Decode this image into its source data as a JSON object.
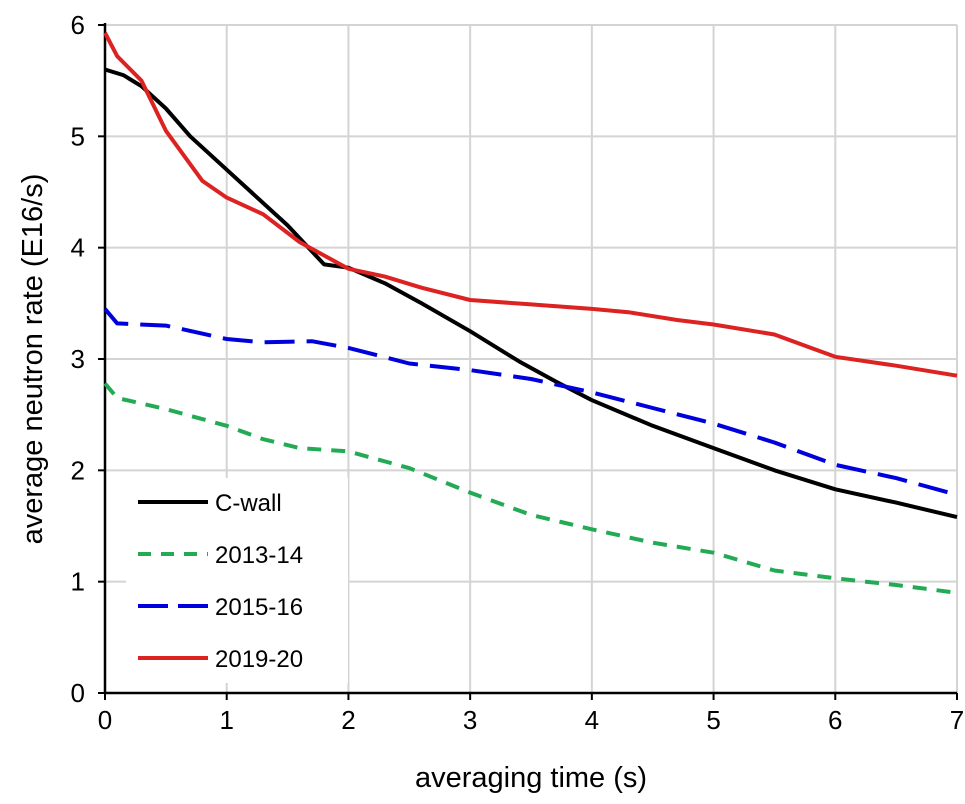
{
  "chart_data": {
    "type": "line",
    "title": "",
    "xlabel": "averaging time (s)",
    "ylabel": "average neutron rate (E16/s)",
    "xlim": [
      0,
      7
    ],
    "ylim": [
      0,
      6
    ],
    "xticks": [
      0,
      1,
      2,
      3,
      4,
      5,
      6,
      7
    ],
    "yticks": [
      0,
      1,
      2,
      3,
      4,
      5,
      6
    ],
    "xtick_labels": [
      "0",
      "1",
      "2",
      "3",
      "4",
      "5",
      "6",
      "7"
    ],
    "ytick_labels": [
      "0",
      "1",
      "2",
      "3",
      "4",
      "5",
      "6"
    ],
    "grid": true,
    "legend_position": "bottom-left",
    "series": [
      {
        "name": "C-wall",
        "color": "#000000",
        "style": "solid",
        "points": [
          [
            0,
            5.6
          ],
          [
            0.15,
            5.55
          ],
          [
            0.3,
            5.45
          ],
          [
            0.5,
            5.25
          ],
          [
            0.7,
            5.0
          ],
          [
            1.0,
            4.7
          ],
          [
            1.2,
            4.5
          ],
          [
            1.5,
            4.2
          ],
          [
            1.8,
            3.85
          ],
          [
            2.0,
            3.82
          ],
          [
            2.3,
            3.68
          ],
          [
            2.6,
            3.5
          ],
          [
            3.0,
            3.25
          ],
          [
            3.4,
            2.98
          ],
          [
            3.7,
            2.8
          ],
          [
            4.0,
            2.63
          ],
          [
            4.5,
            2.4
          ],
          [
            5.0,
            2.2
          ],
          [
            5.5,
            2.0
          ],
          [
            6.0,
            1.83
          ],
          [
            6.5,
            1.71
          ],
          [
            7.0,
            1.58
          ]
        ]
      },
      {
        "name": "2013-14",
        "color": "#22aa55",
        "style": "short-dash",
        "points": [
          [
            0,
            2.78
          ],
          [
            0.1,
            2.65
          ],
          [
            0.5,
            2.55
          ],
          [
            1.0,
            2.4
          ],
          [
            1.3,
            2.28
          ],
          [
            1.6,
            2.2
          ],
          [
            2.0,
            2.17
          ],
          [
            2.5,
            2.02
          ],
          [
            3.0,
            1.8
          ],
          [
            3.5,
            1.6
          ],
          [
            4.0,
            1.47
          ],
          [
            4.5,
            1.35
          ],
          [
            5.0,
            1.26
          ],
          [
            5.5,
            1.1
          ],
          [
            6.0,
            1.03
          ],
          [
            6.5,
            0.97
          ],
          [
            7.0,
            0.9
          ]
        ]
      },
      {
        "name": "2015-16",
        "color": "#0000dd",
        "style": "long-dash",
        "points": [
          [
            0,
            3.45
          ],
          [
            0.1,
            3.32
          ],
          [
            0.5,
            3.3
          ],
          [
            1.0,
            3.18
          ],
          [
            1.3,
            3.15
          ],
          [
            1.7,
            3.16
          ],
          [
            2.0,
            3.1
          ],
          [
            2.5,
            2.96
          ],
          [
            3.0,
            2.9
          ],
          [
            3.5,
            2.82
          ],
          [
            4.0,
            2.7
          ],
          [
            4.5,
            2.56
          ],
          [
            5.0,
            2.42
          ],
          [
            5.5,
            2.25
          ],
          [
            6.0,
            2.05
          ],
          [
            6.5,
            1.93
          ],
          [
            7.0,
            1.78
          ]
        ]
      },
      {
        "name": "2019-20",
        "color": "#dd2222",
        "style": "solid",
        "points": [
          [
            0,
            5.93
          ],
          [
            0.1,
            5.72
          ],
          [
            0.3,
            5.5
          ],
          [
            0.5,
            5.05
          ],
          [
            0.8,
            4.6
          ],
          [
            1.0,
            4.45
          ],
          [
            1.3,
            4.3
          ],
          [
            1.6,
            4.05
          ],
          [
            2.0,
            3.81
          ],
          [
            2.3,
            3.74
          ],
          [
            2.6,
            3.64
          ],
          [
            3.0,
            3.53
          ],
          [
            3.5,
            3.49
          ],
          [
            4.0,
            3.45
          ],
          [
            4.3,
            3.42
          ],
          [
            4.7,
            3.35
          ],
          [
            5.0,
            3.31
          ],
          [
            5.5,
            3.22
          ],
          [
            5.8,
            3.1
          ],
          [
            6.0,
            3.02
          ],
          [
            6.5,
            2.94
          ],
          [
            7.0,
            2.85
          ]
        ]
      }
    ]
  }
}
